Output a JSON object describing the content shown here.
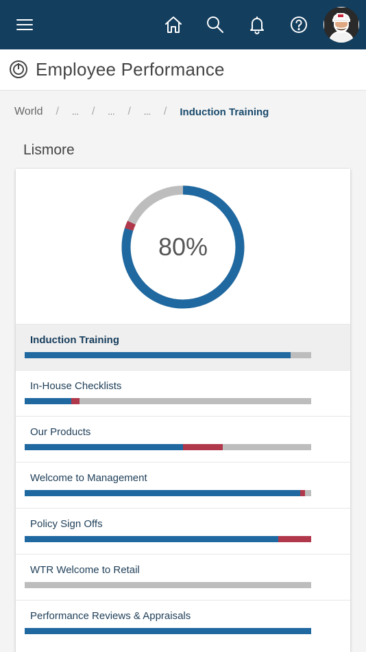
{
  "header": {
    "icons": [
      "menu-icon",
      "home-icon",
      "search-icon",
      "bell-icon",
      "help-icon"
    ],
    "colors": {
      "bar": "#133e5e"
    }
  },
  "title": {
    "text": "Employee Performance",
    "icon": "performance-icon"
  },
  "breadcrumb": {
    "root": "World",
    "ellipsis": [
      "...",
      "...",
      "..."
    ],
    "separator": "/",
    "current": "Induction Training"
  },
  "location": "Lismore",
  "summary": {
    "percent_label": "80%",
    "complete_fraction": 0.8,
    "overdue_fraction": 0.02,
    "colors": {
      "complete": "#1f68a0",
      "overdue": "#b0384a",
      "remaining": "#bdbdbd"
    }
  },
  "courses": [
    {
      "name": "Induction Training",
      "complete": 0.928,
      "overdue": 0.0,
      "active": true
    },
    {
      "name": "In-House Checklists",
      "complete": 0.163,
      "overdue": 0.029
    },
    {
      "name": "Our Products",
      "complete": 0.553,
      "overdue": 0.139
    },
    {
      "name": "Welcome to Management",
      "complete": 0.962,
      "overdue": 0.017
    },
    {
      "name": "Policy Sign Offs",
      "complete": 0.886,
      "overdue": 0.114
    },
    {
      "name": "WTR Welcome to Retail",
      "complete": 0.0,
      "overdue": 0.0
    },
    {
      "name": "Performance Reviews & Appraisals",
      "complete": 1.0,
      "overdue": 0.0
    }
  ]
}
